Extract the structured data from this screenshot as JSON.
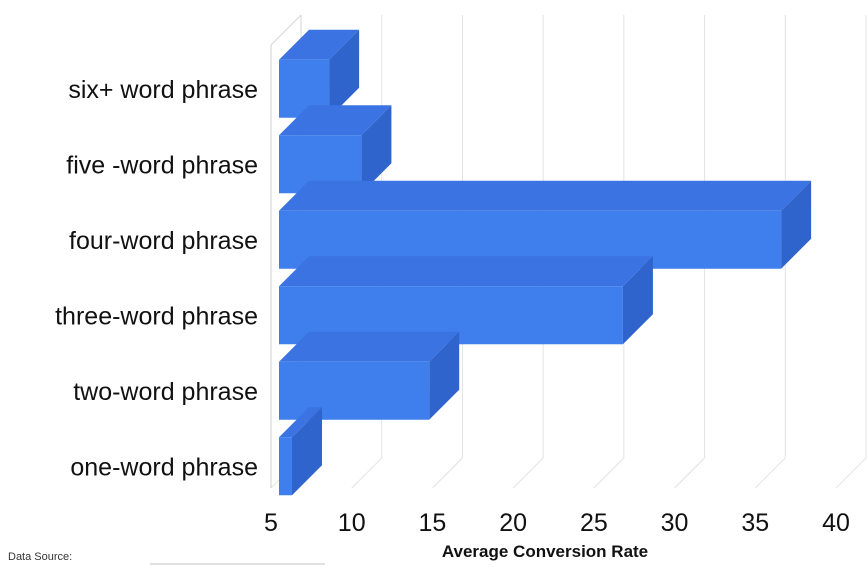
{
  "chart_data": {
    "type": "bar",
    "orientation": "horizontal",
    "style": "3d",
    "categories": [
      "six+ word phrase",
      "five -word phrase",
      "four-word phrase",
      "three-word phrase",
      "two-word phrase",
      "one-word phrase"
    ],
    "values": [
      8.6,
      10.6,
      36.6,
      26.8,
      14.8,
      6.3
    ],
    "xlim": [
      5,
      40
    ],
    "xticks": [
      "5",
      "10",
      "15",
      "20",
      "25",
      "30",
      "35",
      "40"
    ],
    "xlabel": "Average Conversion Rate",
    "ylabel": "",
    "title": "",
    "grid": true,
    "bar_colors": {
      "front": "#3F7EED",
      "top": "#3B74E2",
      "side": "#2F64CC"
    }
  },
  "source_note": "Data Source:"
}
